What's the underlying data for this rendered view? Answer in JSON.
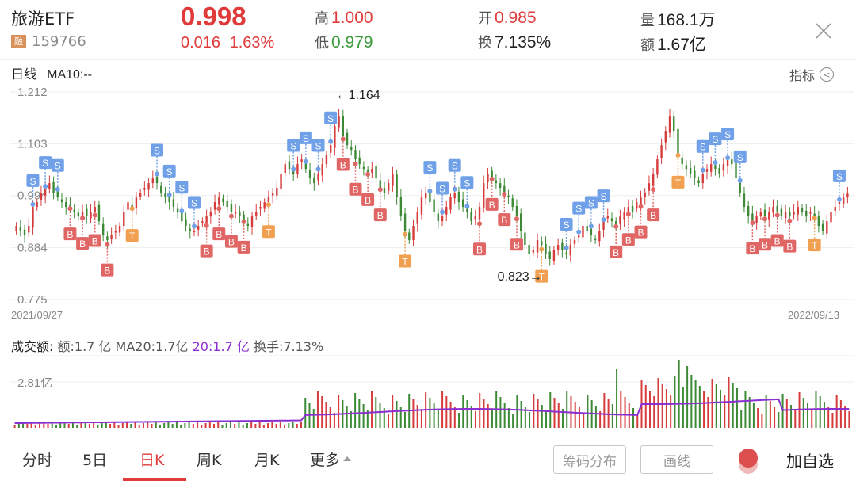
{
  "header": {
    "name": "旅游ETF",
    "margin_badge": "融",
    "code": "159766",
    "price": "0.998",
    "change": "0.016",
    "change_pct": "1.63%",
    "high_label": "高",
    "high": "1.000",
    "low_label": "低",
    "low": "0.979",
    "open_label": "开",
    "open": "0.985",
    "turnover_label": "换",
    "turnover": "7.135%",
    "volume_label": "量",
    "volume": "168.1万",
    "amount_label": "额",
    "amount": "1.67亿",
    "close_icon": "close-icon"
  },
  "chart_header": {
    "period": "日线",
    "ma": "MA10:--",
    "indicator_label": "指标",
    "indicator_icon": "chevron-left-circle-icon"
  },
  "colors": {
    "up": "#d63c3c",
    "down": "#3d8a36",
    "buy": "#e06666",
    "sell": "#6fa0e8",
    "t": "#f0a050",
    "ma": "#8b2fd0",
    "grid": "#eeeeee"
  },
  "price_axis": {
    "ticks": [
      "1.212",
      "1.103",
      "0.994",
      "0.884",
      "0.775"
    ],
    "max_label": "←1.164",
    "min_label": "0.823→",
    "date_start": "2021/09/27",
    "date_end": "2022/09/13"
  },
  "volume": {
    "title_label": "成交额:",
    "amount": "额:1.7 亿",
    "ma20": "MA20:1.7亿",
    "ma20_alt": "20:1.7 亿",
    "turnover": "换手:7.13%",
    "tick": "2.81亿"
  },
  "chart_data": {
    "type": "candlestick",
    "title": "旅游ETF 159766 日线",
    "x_range": [
      "2021/09/27",
      "2022/09/13"
    ],
    "ylim": [
      0.775,
      1.212
    ],
    "y_ticks": [
      1.212,
      1.103,
      0.994,
      0.884,
      0.775
    ],
    "period_high": 1.164,
    "period_low": 0.823,
    "last": {
      "open": 0.985,
      "high": 1.0,
      "low": 0.979,
      "close": 0.998
    },
    "closes": [
      0.93,
      0.92,
      0.91,
      0.93,
      0.97,
      0.98,
      1.0,
      1.01,
      1.02,
      1.0,
      0.99,
      0.98,
      0.97,
      0.97,
      0.96,
      0.95,
      0.96,
      0.95,
      0.96,
      0.97,
      0.94,
      0.91,
      0.9,
      0.91,
      0.92,
      0.93,
      0.96,
      0.98,
      0.97,
      0.99,
      1.0,
      1.01,
      1.02,
      1.03,
      1.02,
      1.0,
      0.99,
      0.98,
      0.97,
      0.96,
      0.94,
      0.93,
      0.92,
      0.92,
      0.93,
      0.94,
      0.95,
      0.96,
      0.98,
      0.99,
      0.98,
      0.97,
      0.96,
      0.96,
      0.95,
      0.94,
      0.93,
      0.95,
      0.96,
      0.97,
      0.98,
      0.99,
      1.0,
      1.01,
      1.04,
      1.06,
      1.05,
      1.04,
      1.06,
      1.07,
      1.05,
      1.03,
      1.02,
      1.04,
      1.06,
      1.08,
      1.1,
      1.14,
      1.16,
      1.12,
      1.1,
      1.09,
      1.07,
      1.06,
      1.05,
      1.04,
      1.05,
      1.03,
      1.01,
      1.0,
      1.02,
      1.04,
      0.99,
      0.95,
      0.92,
      0.9,
      0.93,
      0.96,
      0.99,
      1.0,
      0.98,
      0.96,
      0.94,
      0.95,
      0.97,
      0.99,
      1.0,
      0.98,
      0.97,
      0.96,
      0.94,
      0.95,
      0.97,
      1.02,
      1.04,
      1.03,
      1.02,
      1.01,
      1.0,
      0.99,
      0.97,
      0.95,
      0.92,
      0.89,
      0.87,
      0.88,
      0.9,
      0.89,
      0.87,
      0.86,
      0.88,
      0.89,
      0.88,
      0.87,
      0.89,
      0.9,
      0.91,
      0.93,
      0.92,
      0.91,
      0.9,
      0.92,
      0.94,
      0.95,
      0.94,
      0.93,
      0.95,
      0.96,
      0.97,
      0.96,
      0.98,
      0.99,
      1.0,
      1.02,
      1.04,
      1.07,
      1.1,
      1.13,
      1.16,
      1.13,
      1.08,
      1.06,
      1.05,
      1.04,
      1.03,
      1.02,
      1.04,
      1.05,
      1.06,
      1.05,
      1.04,
      1.06,
      1.07,
      1.06,
      1.03,
      1.0,
      0.97,
      0.95,
      0.94,
      0.95,
      0.96,
      0.95,
      0.96,
      0.97,
      0.96,
      0.95,
      0.96,
      0.95,
      0.96,
      0.97,
      0.96,
      0.95,
      0.96,
      0.95,
      0.93,
      0.92,
      0.94,
      0.96,
      0.97,
      0.98,
      0.99,
      0.998
    ],
    "volume_unit": "亿",
    "volume_max_tick": 2.81,
    "volume_ma20_last": 1.7
  },
  "bottom_bar": {
    "tabs": [
      {
        "label": "分时",
        "active": false
      },
      {
        "label": "5日",
        "active": false
      },
      {
        "label": "日K",
        "active": true
      },
      {
        "label": "周K",
        "active": false
      },
      {
        "label": "月K",
        "active": false
      },
      {
        "label": "更多",
        "active": false
      }
    ],
    "chip_btn": "筹码分布",
    "draw_btn": "画线",
    "add_fav": "加自选"
  }
}
